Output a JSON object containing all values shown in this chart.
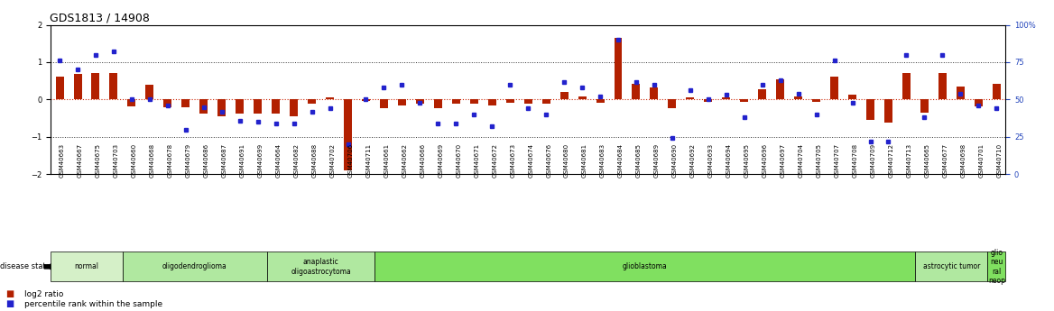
{
  "title": "GDS1813 / 14908",
  "samples": [
    "GSM40663",
    "GSM40667",
    "GSM40675",
    "GSM40703",
    "GSM40660",
    "GSM40668",
    "GSM40678",
    "GSM40679",
    "GSM40686",
    "GSM40687",
    "GSM40691",
    "GSM40699",
    "GSM40664",
    "GSM40682",
    "GSM40688",
    "GSM40702",
    "GSM40706",
    "GSM40711",
    "GSM40661",
    "GSM40662",
    "GSM40666",
    "GSM40669",
    "GSM40670",
    "GSM40671",
    "GSM40672",
    "GSM40673",
    "GSM40674",
    "GSM40676",
    "GSM40680",
    "GSM40681",
    "GSM40683",
    "GSM40684",
    "GSM40685",
    "GSM40689",
    "GSM40690",
    "GSM40692",
    "GSM40693",
    "GSM40694",
    "GSM40695",
    "GSM40696",
    "GSM40697",
    "GSM40704",
    "GSM40705",
    "GSM40707",
    "GSM40708",
    "GSM40709",
    "GSM40712",
    "GSM40713",
    "GSM40665",
    "GSM40677",
    "GSM40698",
    "GSM40701",
    "GSM40710"
  ],
  "log2_ratio": [
    0.62,
    0.68,
    0.72,
    0.72,
    -0.18,
    0.4,
    -0.2,
    -0.2,
    -0.38,
    -0.45,
    -0.38,
    -0.38,
    -0.38,
    -0.45,
    -0.12,
    0.05,
    -1.9,
    -0.05,
    -0.22,
    -0.15,
    -0.1,
    -0.22,
    -0.12,
    -0.12,
    -0.15,
    -0.08,
    -0.12,
    -0.1,
    0.2,
    0.08,
    -0.08,
    1.65,
    0.42,
    0.32,
    -0.22,
    0.06,
    -0.06,
    0.06,
    -0.06,
    0.28,
    0.55,
    0.08,
    -0.06,
    0.62,
    0.12,
    -0.55,
    -0.62,
    0.72,
    -0.35,
    0.72,
    0.35,
    -0.18,
    0.42
  ],
  "percentile": [
    76,
    70,
    80,
    82,
    50,
    50,
    46,
    30,
    45,
    42,
    36,
    35,
    34,
    34,
    42,
    44,
    20,
    50,
    58,
    60,
    48,
    34,
    34,
    40,
    32,
    60,
    44,
    40,
    62,
    58,
    52,
    90,
    62,
    60,
    24,
    56,
    50,
    53,
    38,
    60,
    63,
    54,
    40,
    76,
    48,
    22,
    22,
    80,
    38,
    80,
    54,
    46,
    44
  ],
  "disease_groups": [
    {
      "label": "normal",
      "start": 0,
      "end": 4,
      "color": "#d5f0c8"
    },
    {
      "label": "oligodendroglioma",
      "start": 4,
      "end": 12,
      "color": "#b0e8a0"
    },
    {
      "label": "anaplastic\noligoastrocytoma",
      "start": 12,
      "end": 18,
      "color": "#b0e8a0"
    },
    {
      "label": "glioblastoma",
      "start": 18,
      "end": 48,
      "color": "#80e060"
    },
    {
      "label": "astrocytic tumor",
      "start": 48,
      "end": 52,
      "color": "#b0e8a0"
    },
    {
      "label": "glio\nneu\nral\nneop",
      "start": 52,
      "end": 53,
      "color": "#80e060"
    }
  ],
  "ylim_left": [
    -2,
    2
  ],
  "ylim_right": [
    0,
    100
  ],
  "bar_color": "#b22000",
  "square_color": "#2222cc",
  "zero_line_color": "#cc2200",
  "dotted_line_color": "#333333",
  "title_fontsize": 9,
  "tick_fontsize": 6,
  "sample_fontsize": 5,
  "label_fontsize": 7
}
